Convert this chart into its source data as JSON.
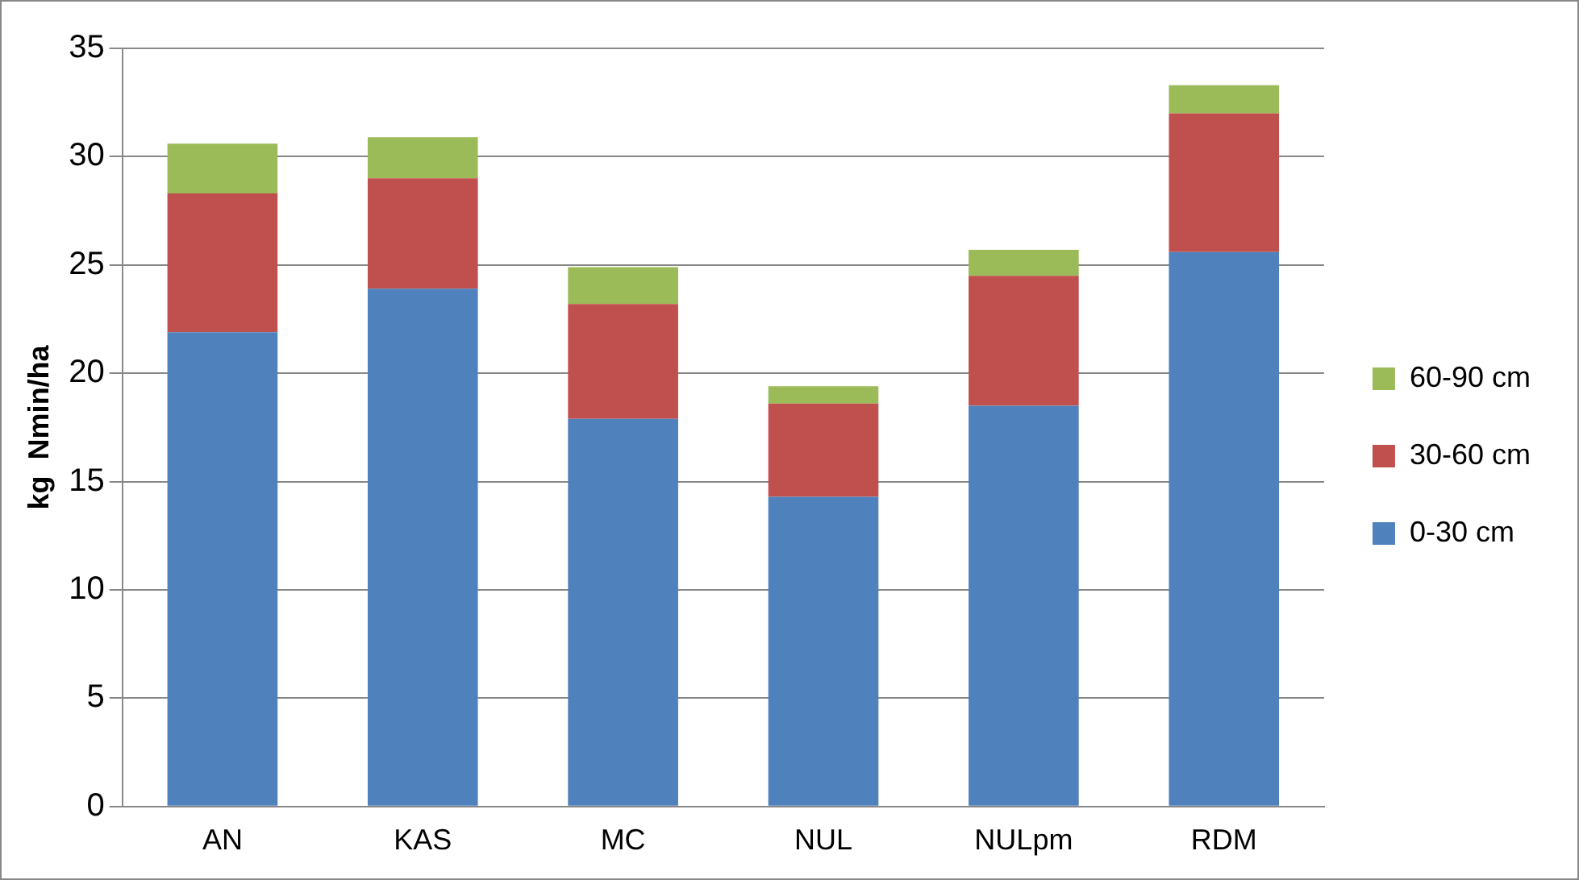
{
  "chart_data": {
    "type": "bar",
    "ylabel": "kg  Nmin/ha",
    "categories": [
      "AN",
      "KAS",
      "MC",
      "NUL",
      "NULpm",
      "RDM"
    ],
    "stacked": true,
    "series": [
      {
        "name": "0-30 cm",
        "color": "#4f81bd",
        "values": [
          21.9,
          23.9,
          17.9,
          14.3,
          18.5,
          25.6
        ]
      },
      {
        "name": "30-60 cm",
        "color": "#c0504d",
        "values": [
          6.4,
          5.1,
          5.3,
          4.3,
          6.0,
          6.4
        ]
      },
      {
        "name": "60-90 cm",
        "color": "#9bbb59",
        "values": [
          2.3,
          1.9,
          1.7,
          0.8,
          1.2,
          1.3
        ]
      }
    ],
    "ylim": [
      0,
      35
    ],
    "yticks": [
      0,
      5,
      10,
      15,
      20,
      25,
      30,
      35
    ],
    "grid": "y",
    "legend": "right"
  }
}
